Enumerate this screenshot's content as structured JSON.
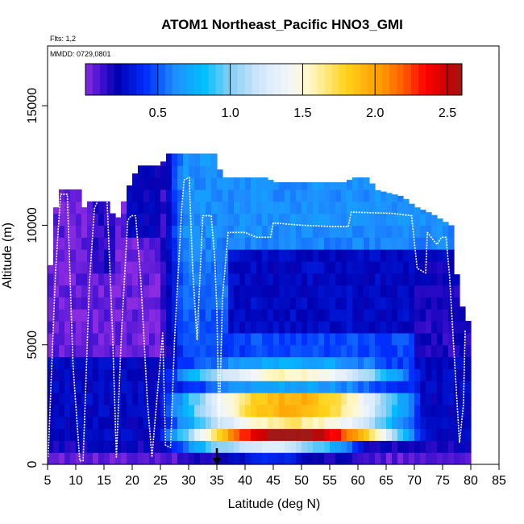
{
  "chart_data": {
    "type": "heatmap",
    "title": "ATOM1 Northeast_Pacific HNO3_GMI",
    "flights_label": "Flts: 1,2",
    "dates_label": "MMDD: 0729,0801",
    "xlabel": "Latitude (deg N)",
    "ylabel": "Altitude (m)",
    "xlim": [
      5,
      85
    ],
    "ylim": [
      0,
      17500
    ],
    "x_ticks": [
      "5",
      "10",
      "15",
      "20",
      "25",
      "30",
      "35",
      "40",
      "45",
      "50",
      "55",
      "60",
      "65",
      "70",
      "75",
      "80",
      "85"
    ],
    "x_tick_values": [
      5,
      10,
      15,
      20,
      25,
      30,
      35,
      40,
      45,
      50,
      55,
      60,
      65,
      70,
      75,
      80,
      85
    ],
    "y_ticks": [
      "0",
      "5000",
      "10000",
      "15000"
    ],
    "y_tick_values": [
      0,
      5000,
      10000,
      15000
    ],
    "colorbar": {
      "range": [
        0,
        2.6
      ],
      "tick_labels": [
        "0.5",
        "1.0",
        "1.5",
        "2.0",
        "2.5"
      ],
      "tick_values": [
        0.5,
        1.0,
        1.5,
        2.0,
        2.5
      ]
    },
    "marker_latitude": 35,
    "flight_track": [
      [
        5.1,
        300
      ],
      [
        6.4,
        8000
      ],
      [
        7.3,
        11300
      ],
      [
        8.5,
        11300
      ],
      [
        9.5,
        4200
      ],
      [
        10.7,
        150
      ],
      [
        11.3,
        150
      ],
      [
        12.4,
        7500
      ],
      [
        13.3,
        10700
      ],
      [
        14.4,
        11300
      ],
      [
        15.5,
        11300
      ],
      [
        16.5,
        5600
      ],
      [
        17.2,
        300
      ],
      [
        18.1,
        5500
      ],
      [
        19.2,
        10200
      ],
      [
        19.8,
        10400
      ],
      [
        20.6,
        10400
      ],
      [
        21.5,
        7800
      ],
      [
        22.7,
        2600
      ],
      [
        23.5,
        300
      ],
      [
        24.4,
        2800
      ],
      [
        25.4,
        5500
      ],
      [
        25.9,
        800
      ],
      [
        26.8,
        700
      ],
      [
        27.5,
        5200
      ],
      [
        28.8,
        10800
      ],
      [
        29.2,
        11900
      ],
      [
        30.1,
        12000
      ],
      [
        30.7,
        8200
      ],
      [
        31.5,
        5200
      ],
      [
        32.5,
        10400
      ],
      [
        34.0,
        10400
      ],
      [
        34.6,
        8700
      ],
      [
        35.0,
        6500
      ],
      [
        35.4,
        1500
      ],
      [
        36.0,
        7000
      ],
      [
        37.0,
        9700
      ],
      [
        40.0,
        9700
      ],
      [
        42.0,
        9500
      ],
      [
        44.5,
        9500
      ],
      [
        45.0,
        10100
      ],
      [
        50.0,
        10000
      ],
      [
        55.0,
        9950
      ],
      [
        58.3,
        9950
      ],
      [
        58.8,
        10550
      ],
      [
        66.0,
        10500
      ],
      [
        69.5,
        10400
      ],
      [
        70.5,
        8200
      ],
      [
        72.0,
        8000
      ],
      [
        72.3,
        9700
      ],
      [
        73.3,
        9400
      ],
      [
        74.0,
        9200
      ],
      [
        74.8,
        9500
      ],
      [
        75.6,
        9500
      ],
      [
        76.2,
        8000
      ],
      [
        77.0,
        4800
      ],
      [
        78.0,
        900
      ],
      [
        78.7,
        2500
      ],
      [
        79.0,
        5600
      ]
    ]
  }
}
